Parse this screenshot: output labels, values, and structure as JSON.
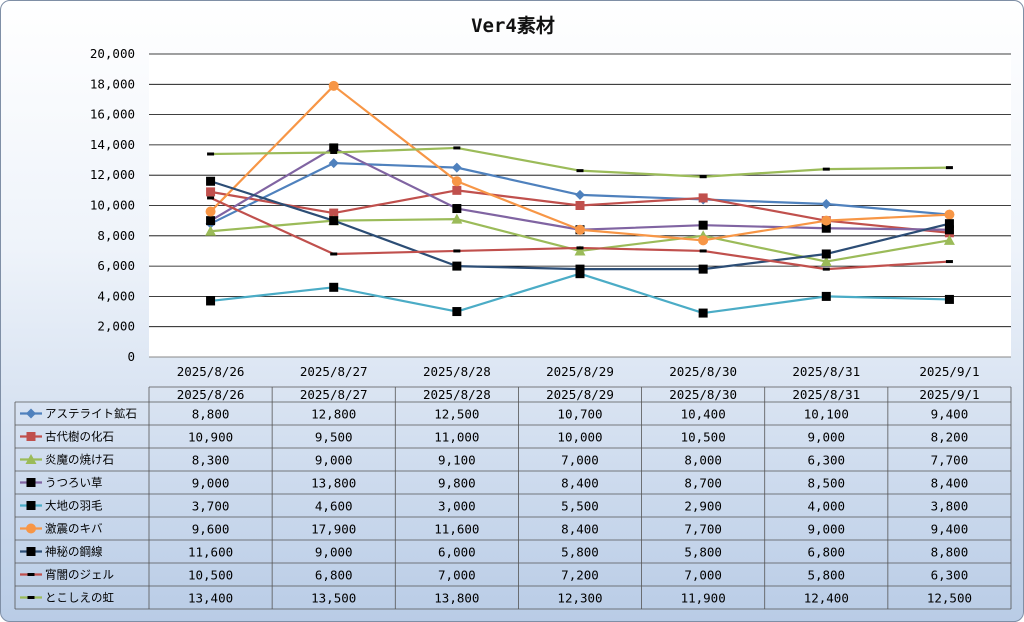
{
  "chart_data": {
    "type": "line",
    "title": "Ver4素材",
    "ylim": [
      0,
      20000
    ],
    "yticks": [
      "0",
      "2,000",
      "4,000",
      "6,000",
      "8,000",
      "10,000",
      "12,000",
      "14,000",
      "16,000",
      "18,000",
      "20,000"
    ],
    "categories": [
      "2025/8/26",
      "2025/8/27",
      "2025/8/28",
      "2025/8/29",
      "2025/8/30",
      "2025/8/31",
      "2025/9/1"
    ],
    "grid": true,
    "legend": "data-table-below",
    "series": [
      {
        "name": "アステライト鉱石",
        "color": "#4f81bd",
        "marker": "diamond",
        "values": [
          8800,
          12800,
          12500,
          10700,
          10400,
          10100,
          9400
        ],
        "labels": [
          "8,800",
          "12,800",
          "12,500",
          "10,700",
          "10,400",
          "10,100",
          "9,400"
        ]
      },
      {
        "name": "古代樹の化石",
        "color": "#c0504d",
        "marker": "square",
        "values": [
          10900,
          9500,
          11000,
          10000,
          10500,
          9000,
          8200
        ],
        "labels": [
          "10,900",
          "9,500",
          "11,000",
          "10,000",
          "10,500",
          "9,000",
          "8,200"
        ]
      },
      {
        "name": "炎魔の焼け石",
        "color": "#9bbb59",
        "marker": "triangle",
        "values": [
          8300,
          9000,
          9100,
          7000,
          8000,
          6300,
          7700
        ],
        "labels": [
          "8,300",
          "9,000",
          "9,100",
          "7,000",
          "8,000",
          "6,300",
          "7,700"
        ]
      },
      {
        "name": "うつろい草",
        "color": "#8064a2",
        "marker": "square-black",
        "values": [
          9000,
          13800,
          9800,
          8400,
          8700,
          8500,
          8400
        ],
        "labels": [
          "9,000",
          "13,800",
          "9,800",
          "8,400",
          "8,700",
          "8,500",
          "8,400"
        ]
      },
      {
        "name": "大地の羽毛",
        "color": "#4bacc6",
        "marker": "square-black",
        "values": [
          3700,
          4600,
          3000,
          5500,
          2900,
          4000,
          3800
        ],
        "labels": [
          "3,700",
          "4,600",
          "3,000",
          "5,500",
          "2,900",
          "4,000",
          "3,800"
        ]
      },
      {
        "name": "激震のキバ",
        "color": "#f79646",
        "marker": "circle",
        "values": [
          9600,
          17900,
          11600,
          8400,
          7700,
          9000,
          9400
        ],
        "labels": [
          "9,600",
          "17,900",
          "11,600",
          "8,400",
          "7,700",
          "9,000",
          "9,400"
        ]
      },
      {
        "name": "神秘の鋼線",
        "color": "#2c4d75",
        "marker": "square-black",
        "values": [
          11600,
          9000,
          6000,
          5800,
          5800,
          6800,
          8800
        ],
        "labels": [
          "11,600",
          "9,000",
          "6,000",
          "5,800",
          "5,800",
          "6,800",
          "8,800"
        ]
      },
      {
        "name": "宵闇のジェル",
        "color": "#c0504d",
        "marker": "dash",
        "values": [
          10500,
          6800,
          7000,
          7200,
          7000,
          5800,
          6300
        ],
        "labels": [
          "10,500",
          "6,800",
          "7,000",
          "7,200",
          "7,000",
          "5,800",
          "6,300"
        ]
      },
      {
        "name": "とこしえの虹",
        "color": "#9bbb59",
        "marker": "dash",
        "values": [
          13400,
          13500,
          13800,
          12300,
          11900,
          12400,
          12500
        ],
        "labels": [
          "13,400",
          "13,500",
          "13,800",
          "12,300",
          "11,900",
          "12,400",
          "12,500"
        ]
      }
    ]
  }
}
